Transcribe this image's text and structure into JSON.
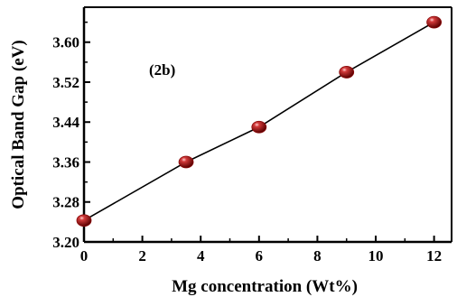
{
  "chart_data": {
    "type": "line",
    "xlabel": "Mg concentration (Wt%)",
    "ylabel": "Optical Band Gap (eV)",
    "annotation": "(2b)",
    "xlim": [
      0,
      12.6
    ],
    "ylim": [
      3.2,
      3.67
    ],
    "x_ticks": [
      0,
      2,
      4,
      6,
      8,
      10,
      12
    ],
    "x_tick_labels": [
      "0",
      "2",
      "4",
      "6",
      "8",
      "10",
      "12"
    ],
    "y_ticks": [
      3.2,
      3.28,
      3.36,
      3.44,
      3.52,
      3.6
    ],
    "y_tick_labels": [
      "3.20",
      "3.28",
      "3.36",
      "3.44",
      "3.52",
      "3.60"
    ],
    "marker_color": "#8b0a0a",
    "series": [
      {
        "x": [
          0,
          3.5,
          6,
          9,
          12
        ],
        "y": [
          3.243,
          3.36,
          3.43,
          3.54,
          3.64
        ]
      }
    ]
  }
}
